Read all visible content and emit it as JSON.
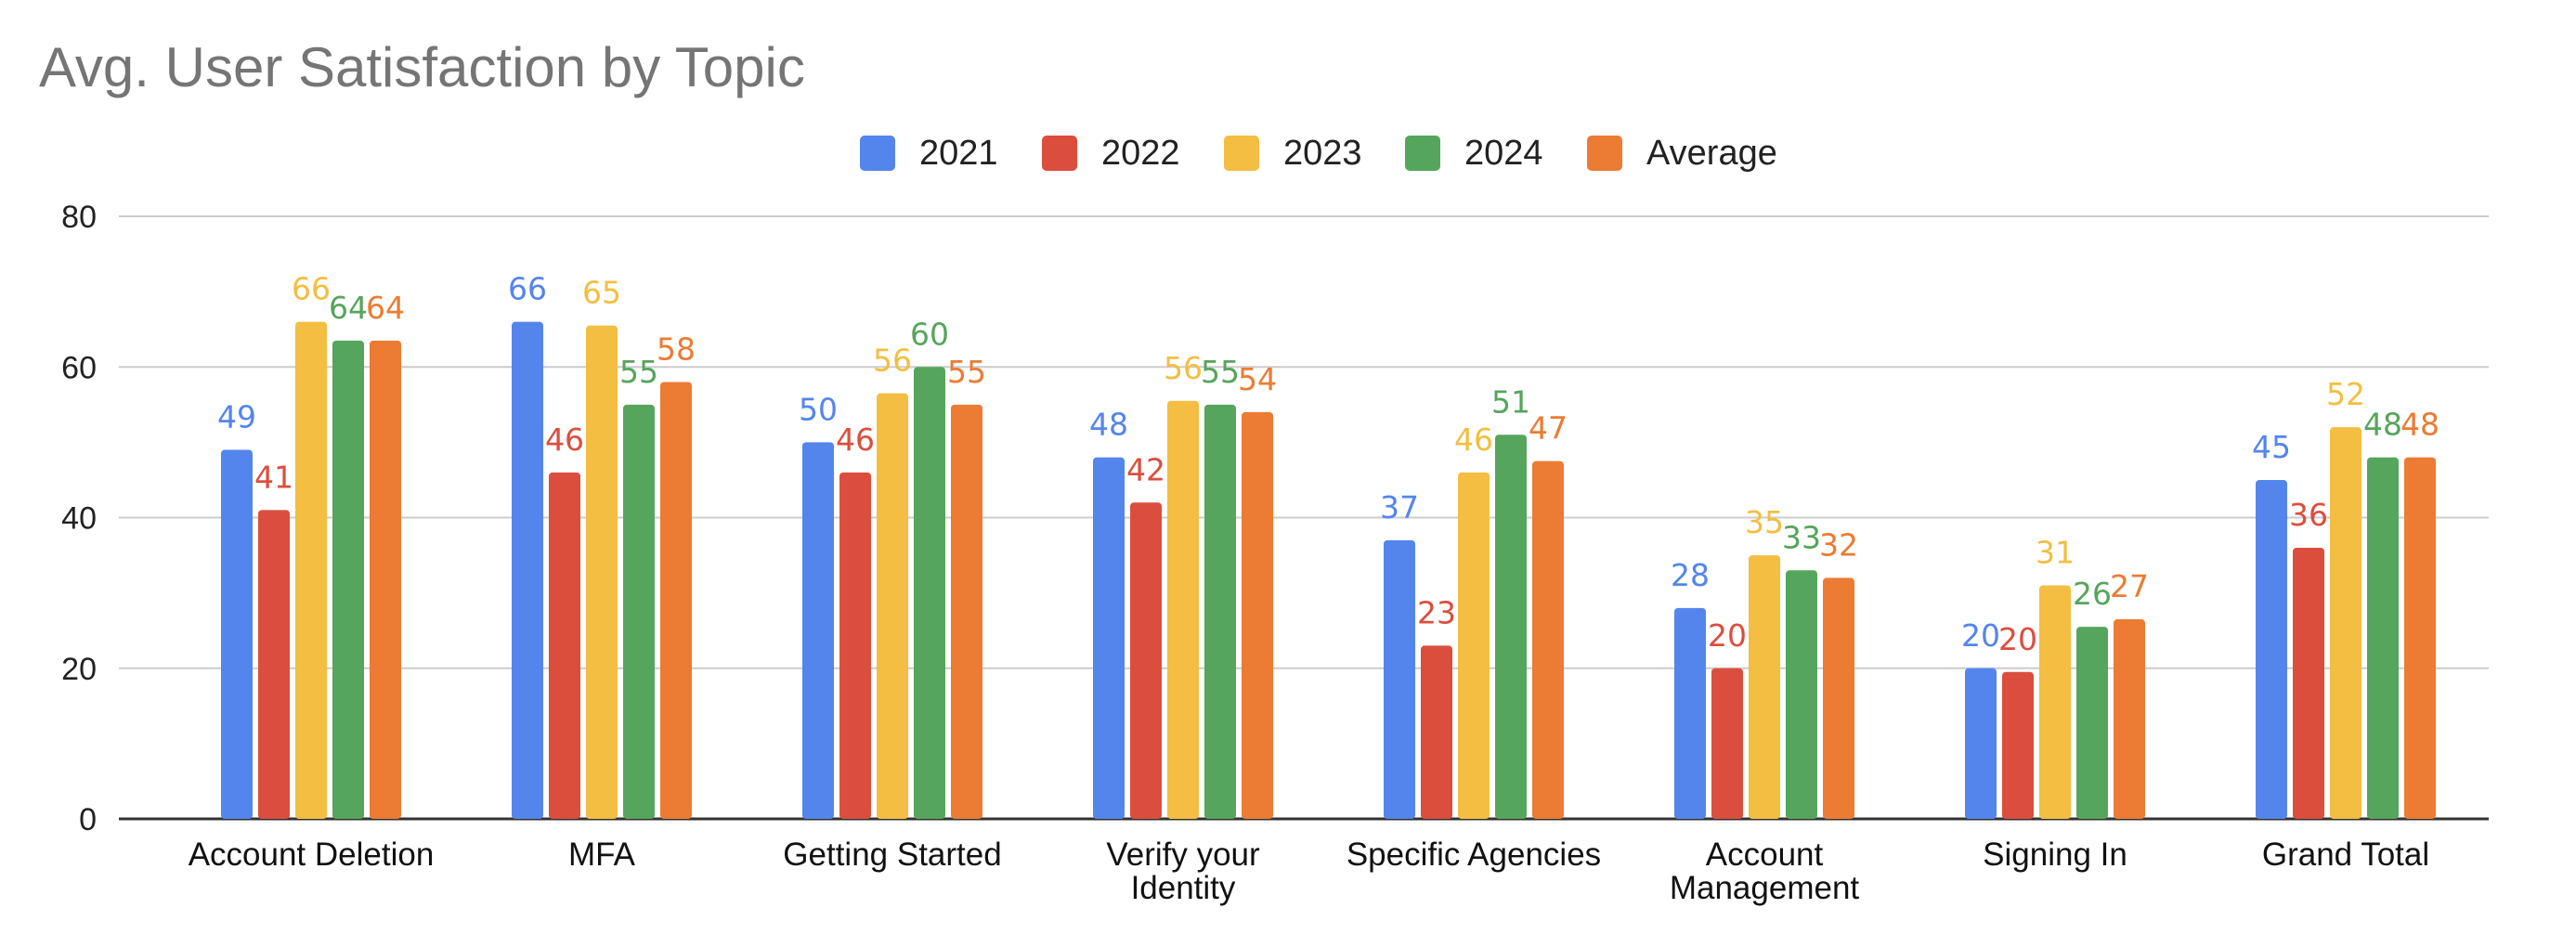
{
  "chart_data": {
    "type": "bar",
    "title": "Avg. User Satisfaction by Topic",
    "xlabel": "",
    "ylabel": "",
    "ylim": [
      0,
      80
    ],
    "yticks": [
      0,
      20,
      40,
      60,
      80
    ],
    "grid": true,
    "legend_position": "top-center",
    "categories": [
      [
        "Account Deletion"
      ],
      [
        "MFA"
      ],
      [
        "Getting Started"
      ],
      [
        "Verify your",
        "Identity"
      ],
      [
        "Specific Agencies"
      ],
      [
        "Account",
        "Management"
      ],
      [
        "Signing In"
      ],
      [
        "Grand Total"
      ]
    ],
    "series": [
      {
        "name": "2021",
        "color": "#5485EC",
        "values": [
          49,
          66,
          50,
          48,
          37,
          28,
          20,
          45
        ],
        "labels": [
          "49",
          "66",
          "50",
          "48",
          "37",
          "28",
          "20",
          "45"
        ]
      },
      {
        "name": "2022",
        "color": "#DB4E3E",
        "values": [
          41,
          46,
          46,
          42,
          23,
          20,
          19.5,
          36
        ],
        "labels": [
          "41",
          "46",
          "46",
          "42",
          "23",
          "20",
          "20",
          "36"
        ]
      },
      {
        "name": "2023",
        "color": "#F3BE41",
        "values": [
          66,
          65.5,
          56.5,
          55.5,
          46,
          35,
          31,
          52
        ],
        "labels": [
          "66",
          "65",
          "56",
          "56",
          "46",
          "35",
          "31",
          "52"
        ]
      },
      {
        "name": "2024",
        "color": "#56A55C",
        "values": [
          63.5,
          55,
          60,
          55,
          51,
          33,
          25.5,
          48
        ],
        "labels": [
          "64",
          "55",
          "60",
          "55",
          "51",
          "33",
          "26",
          "48"
        ]
      },
      {
        "name": "Average",
        "color": "#EC7B33",
        "values": [
          63.5,
          58,
          55,
          54,
          47.5,
          32,
          26.5,
          48
        ],
        "labels": [
          "64",
          "58",
          "55",
          "54",
          "47",
          "32",
          "27",
          "48"
        ]
      }
    ]
  }
}
